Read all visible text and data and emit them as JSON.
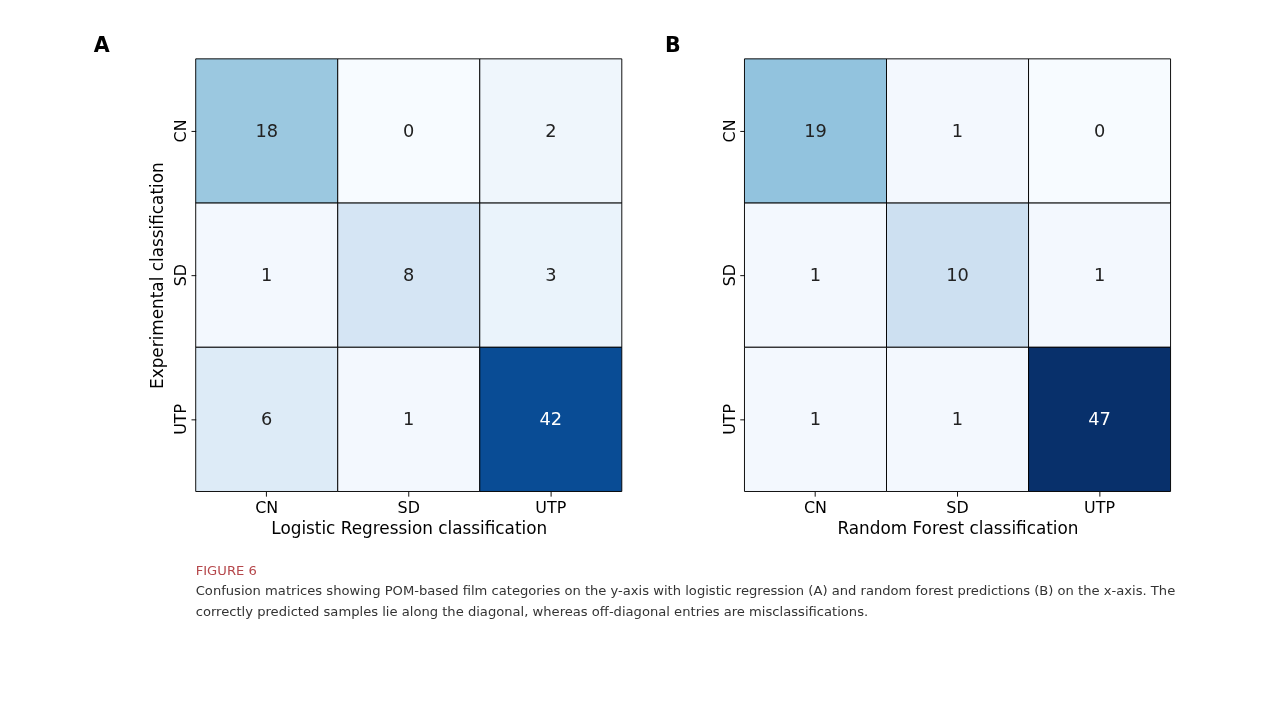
{
  "chart_data": [
    {
      "type": "heatmap",
      "title": "A",
      "xlabel": "Logistic Regression classification",
      "ylabel": "Experimental classification",
      "categories": [
        "CN",
        "SD",
        "UTP"
      ],
      "y_categories": [
        "CN",
        "SD",
        "UTP"
      ],
      "cells": [
        [
          18,
          0,
          2
        ],
        [
          1,
          8,
          3
        ],
        [
          6,
          1,
          42
        ]
      ],
      "data_labels": true,
      "grid": false,
      "legend": false,
      "annotations": [
        "FIGURE 6",
        "Confusion matrices showing POM-based film categories on the y-axis with logistic regression (A) and random forest predictions (B) on the x-axis. The correctly predicted samples lie along the diagonal, whereas off-diagonal entries are misclassifications."
      ]
    },
    {
      "type": "heatmap",
      "title": "B",
      "xlabel": "Random Forest classification",
      "categories": [
        "CN",
        "SD",
        "UTP"
      ],
      "y_categories": [
        "CN",
        "SD",
        "UTP"
      ],
      "cells": [
        [
          19,
          1,
          0
        ],
        [
          1,
          10,
          1
        ],
        [
          1,
          1,
          47
        ]
      ],
      "data_labels": true,
      "grid": false,
      "legend": false
    }
  ]
}
